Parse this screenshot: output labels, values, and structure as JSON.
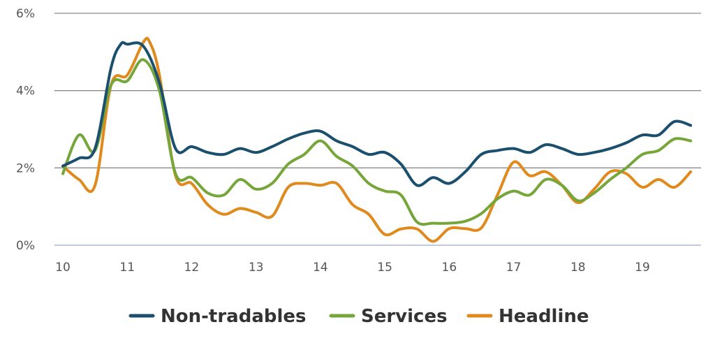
{
  "chart_data": {
    "type": "line",
    "title": "",
    "xlabel": "",
    "ylabel": "",
    "xlim": [
      10,
      19.8
    ],
    "ylim": [
      0,
      6
    ],
    "y_ticks": [
      {
        "value": 0,
        "label": "0%"
      },
      {
        "value": 2,
        "label": "2%"
      },
      {
        "value": 4,
        "label": "4%"
      },
      {
        "value": 6,
        "label": "6%"
      }
    ],
    "x_ticks": [
      {
        "value": 10,
        "label": "10"
      },
      {
        "value": 11,
        "label": "11"
      },
      {
        "value": 12,
        "label": "12"
      },
      {
        "value": 13,
        "label": "13"
      },
      {
        "value": 14,
        "label": "14"
      },
      {
        "value": 15,
        "label": "15"
      },
      {
        "value": 16,
        "label": "16"
      },
      {
        "value": 17,
        "label": "17"
      },
      {
        "value": 18,
        "label": "18"
      },
      {
        "value": 19,
        "label": "19"
      }
    ],
    "grid": true,
    "legend_position": "bottom",
    "series": [
      {
        "name": "Non-tradables",
        "color": "#1b4f6e",
        "points": [
          [
            10.0,
            2.05
          ],
          [
            10.25,
            2.25
          ],
          [
            10.5,
            2.5
          ],
          [
            10.75,
            4.6
          ],
          [
            10.9,
            5.2
          ],
          [
            11.0,
            5.2
          ],
          [
            11.25,
            5.15
          ],
          [
            11.5,
            4.2
          ],
          [
            11.75,
            2.5
          ],
          [
            12.0,
            2.55
          ],
          [
            12.25,
            2.4
          ],
          [
            12.5,
            2.35
          ],
          [
            12.75,
            2.5
          ],
          [
            13.0,
            2.4
          ],
          [
            13.25,
            2.55
          ],
          [
            13.5,
            2.75
          ],
          [
            13.75,
            2.9
          ],
          [
            14.0,
            2.95
          ],
          [
            14.25,
            2.7
          ],
          [
            14.5,
            2.55
          ],
          [
            14.75,
            2.35
          ],
          [
            15.0,
            2.4
          ],
          [
            15.25,
            2.1
          ],
          [
            15.5,
            1.55
          ],
          [
            15.75,
            1.75
          ],
          [
            16.0,
            1.6
          ],
          [
            16.25,
            1.9
          ],
          [
            16.5,
            2.35
          ],
          [
            16.75,
            2.45
          ],
          [
            17.0,
            2.5
          ],
          [
            17.25,
            2.4
          ],
          [
            17.5,
            2.6
          ],
          [
            17.75,
            2.5
          ],
          [
            18.0,
            2.35
          ],
          [
            18.25,
            2.4
          ],
          [
            18.5,
            2.5
          ],
          [
            18.75,
            2.65
          ],
          [
            19.0,
            2.85
          ],
          [
            19.25,
            2.85
          ],
          [
            19.5,
            3.2
          ],
          [
            19.75,
            3.1
          ]
        ]
      },
      {
        "name": "Services",
        "color": "#76a63a",
        "points": [
          [
            10.0,
            1.85
          ],
          [
            10.25,
            2.85
          ],
          [
            10.5,
            2.45
          ],
          [
            10.75,
            4.15
          ],
          [
            11.0,
            4.25
          ],
          [
            11.25,
            4.8
          ],
          [
            11.5,
            4.0
          ],
          [
            11.75,
            1.85
          ],
          [
            12.0,
            1.75
          ],
          [
            12.25,
            1.35
          ],
          [
            12.5,
            1.3
          ],
          [
            12.75,
            1.7
          ],
          [
            13.0,
            1.45
          ],
          [
            13.25,
            1.6
          ],
          [
            13.5,
            2.1
          ],
          [
            13.75,
            2.35
          ],
          [
            14.0,
            2.7
          ],
          [
            14.25,
            2.3
          ],
          [
            14.5,
            2.05
          ],
          [
            14.75,
            1.6
          ],
          [
            15.0,
            1.4
          ],
          [
            15.25,
            1.3
          ],
          [
            15.5,
            0.6
          ],
          [
            15.75,
            0.57
          ],
          [
            16.0,
            0.57
          ],
          [
            16.25,
            0.62
          ],
          [
            16.5,
            0.82
          ],
          [
            16.75,
            1.2
          ],
          [
            17.0,
            1.4
          ],
          [
            17.25,
            1.3
          ],
          [
            17.5,
            1.7
          ],
          [
            17.75,
            1.55
          ],
          [
            18.0,
            1.15
          ],
          [
            18.25,
            1.35
          ],
          [
            18.5,
            1.7
          ],
          [
            18.75,
            2.0
          ],
          [
            19.0,
            2.35
          ],
          [
            19.25,
            2.45
          ],
          [
            19.5,
            2.75
          ],
          [
            19.75,
            2.7
          ]
        ]
      },
      {
        "name": "Headline",
        "color": "#e08a1e",
        "points": [
          [
            10.0,
            2.05
          ],
          [
            10.25,
            1.7
          ],
          [
            10.5,
            1.55
          ],
          [
            10.75,
            4.15
          ],
          [
            11.0,
            4.4
          ],
          [
            11.25,
            5.25
          ],
          [
            11.35,
            5.25
          ],
          [
            11.5,
            4.4
          ],
          [
            11.75,
            1.8
          ],
          [
            12.0,
            1.6
          ],
          [
            12.25,
            1.05
          ],
          [
            12.5,
            0.8
          ],
          [
            12.75,
            0.95
          ],
          [
            13.0,
            0.85
          ],
          [
            13.25,
            0.75
          ],
          [
            13.5,
            1.5
          ],
          [
            13.75,
            1.6
          ],
          [
            14.0,
            1.55
          ],
          [
            14.25,
            1.6
          ],
          [
            14.5,
            1.05
          ],
          [
            14.75,
            0.8
          ],
          [
            15.0,
            0.28
          ],
          [
            15.25,
            0.42
          ],
          [
            15.5,
            0.42
          ],
          [
            15.75,
            0.1
          ],
          [
            16.0,
            0.43
          ],
          [
            16.25,
            0.43
          ],
          [
            16.5,
            0.45
          ],
          [
            16.75,
            1.3
          ],
          [
            17.0,
            2.15
          ],
          [
            17.25,
            1.8
          ],
          [
            17.5,
            1.9
          ],
          [
            17.75,
            1.55
          ],
          [
            18.0,
            1.1
          ],
          [
            18.25,
            1.45
          ],
          [
            18.5,
            1.9
          ],
          [
            18.75,
            1.85
          ],
          [
            19.0,
            1.5
          ],
          [
            19.25,
            1.7
          ],
          [
            19.5,
            1.5
          ],
          [
            19.75,
            1.9
          ]
        ]
      }
    ]
  }
}
